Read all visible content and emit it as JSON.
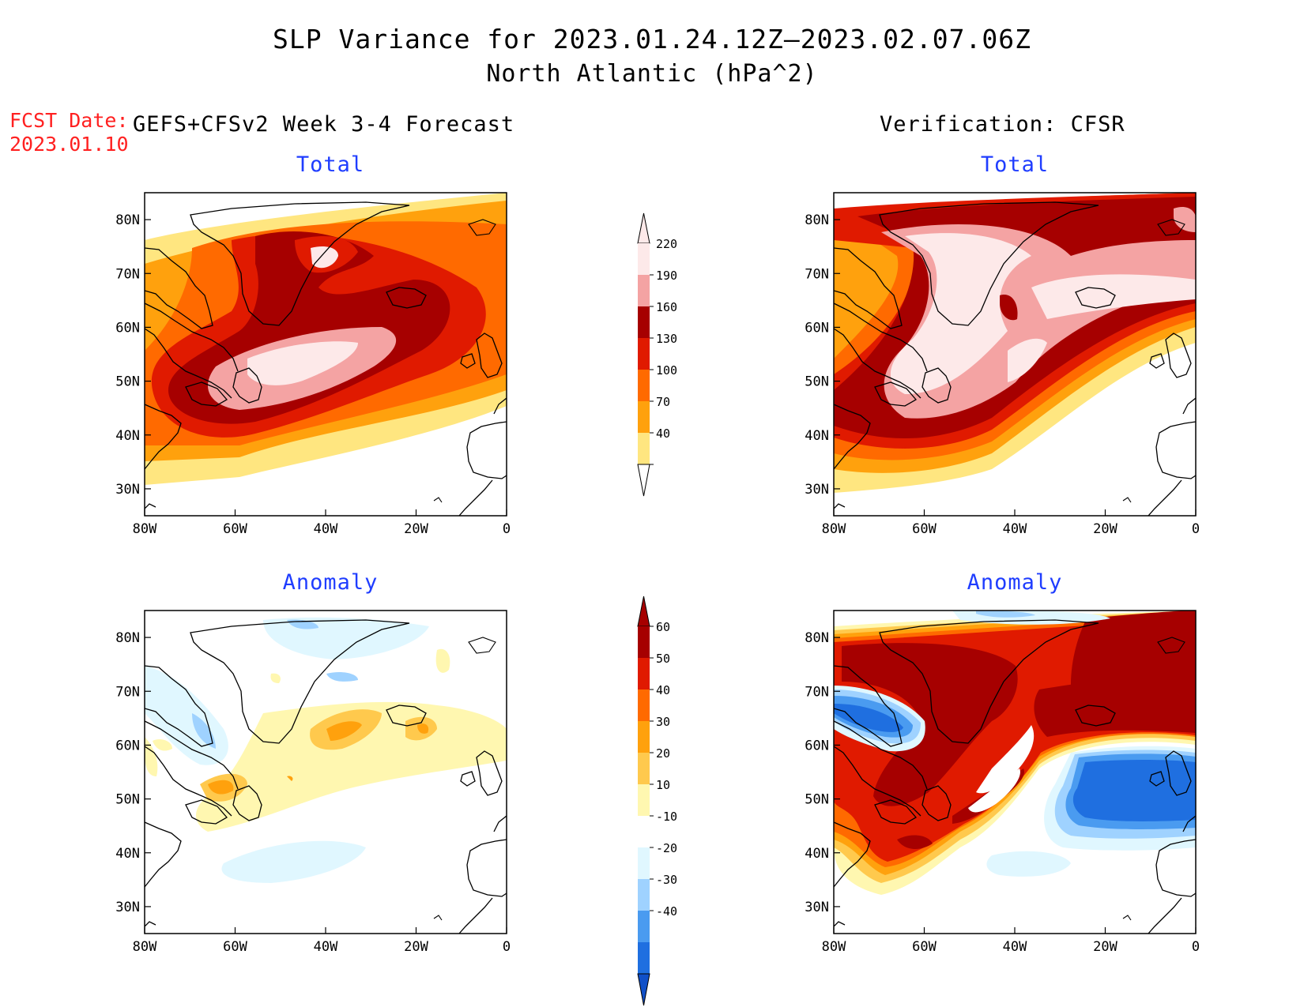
{
  "title": {
    "line1": "SLP Variance for 2023.01.24.12Z–2023.02.07.06Z",
    "line2": "North Atlantic (hPa^2)"
  },
  "fcst_date": {
    "label": "FCST Date:",
    "value": "2023.01.10"
  },
  "left_header": "GEFS+CFSv2 Week 3-4 Forecast",
  "right_header": "Verification: CFSR",
  "panels": [
    {
      "id": "fcst-total",
      "subtitle": "Total"
    },
    {
      "id": "verif-total",
      "subtitle": "Total"
    },
    {
      "id": "fcst-anomaly",
      "subtitle": "Anomaly"
    },
    {
      "id": "verif-anomaly",
      "subtitle": "Anomaly"
    }
  ],
  "axes": {
    "lat_ticks": [
      "80N",
      "70N",
      "60N",
      "50N",
      "40N",
      "30N"
    ],
    "lon_ticks": [
      "80W",
      "60W",
      "40W",
      "20W",
      "0"
    ]
  },
  "colorbars": {
    "total": {
      "labels": [
        "220",
        "190",
        "160",
        "130",
        "100",
        "70",
        "40"
      ],
      "colors": [
        "#fde9e9",
        "#f4a3a3",
        "#a60000",
        "#e01a00",
        "#ff6a00",
        "#ffa10d",
        "#ffe680"
      ]
    },
    "anomaly": {
      "labels": [
        "60",
        "50",
        "40",
        "30",
        "20",
        "10",
        "-10",
        "-20",
        "-30",
        "-40"
      ],
      "colors": [
        "#a60000",
        "#e01a00",
        "#ff6a00",
        "#ffa10d",
        "#ffc94d",
        "#fff7b0",
        "#ffffff",
        "#e0f7ff",
        "#9fd2ff",
        "#4a9bf0",
        "#1f6fe0",
        "#1050c8"
      ]
    }
  },
  "map_data": {
    "region": "North Atlantic",
    "projection": "lat-lon",
    "lon_range": [
      -80,
      0
    ],
    "lat_range": [
      25,
      85
    ]
  },
  "colors": {
    "fcst_date": "#ff2020",
    "subtitle": "#1f3dff",
    "coast": "#000000"
  }
}
